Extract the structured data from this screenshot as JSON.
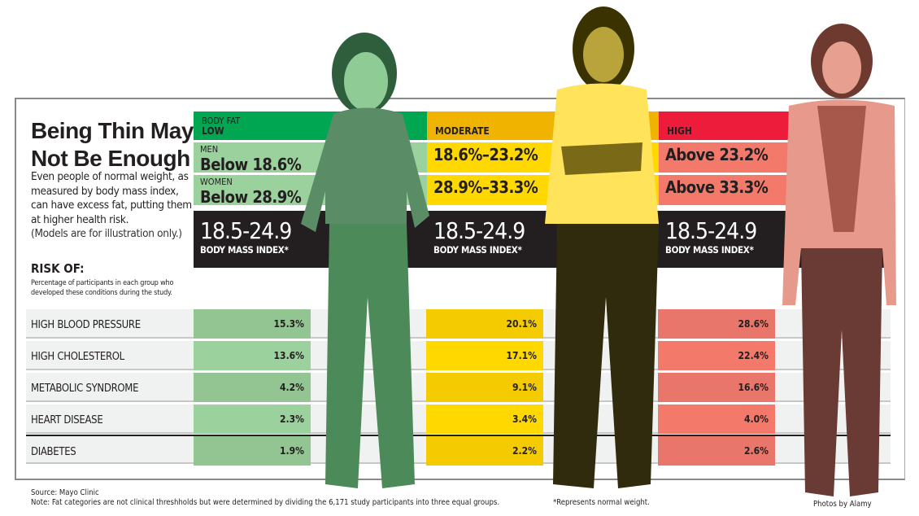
{
  "title": "Being Thin May Not Be Enough",
  "intro": "Even people of normal weight, as measured by body mass index, can have excess fat, putting them at higher health risk.",
  "intro_note": "(Models are for illustration only.)",
  "risk_heading": "RISK OF:",
  "risk_subtitle": "Percentage of participants in each group who developed these conditions during the study.",
  "body_fat_label": "BODY FAT",
  "men_label": "MEN",
  "women_label": "WOMEN",
  "colors": {
    "low_header": "#00a651",
    "low_cell": "#9ad19c",
    "low_cell_dark": "#93c592",
    "moderate_header": "#f0b400",
    "moderate_cell": "#ffd800",
    "moderate_cell_dark": "#f3cb00",
    "high_header": "#ed1c3a",
    "high_cell": "#f3796b",
    "high_cell_dark": "#e9766a",
    "bmi_band": "#231f20"
  },
  "chart_data": {
    "type": "table",
    "title": "Being Thin May Not Be Enough",
    "columns": [
      {
        "category": "LOW",
        "men": "Below 18.6%",
        "women": "Below 28.9%",
        "bmi": "18.5-24.9",
        "bmi_label": "BODY MASS INDEX*"
      },
      {
        "category": "MODERATE",
        "men": "18.6%–23.2%",
        "women": "28.9%–33.3%",
        "bmi": "18.5-24.9",
        "bmi_label": "BODY MASS INDEX*"
      },
      {
        "category": "HIGH",
        "men": "Above 23.2%",
        "women": "Above 33.3%",
        "bmi": "18.5-24.9",
        "bmi_label": "BODY MASS INDEX*"
      }
    ],
    "rows": [
      {
        "condition": "HIGH BLOOD PRESSURE",
        "values": [
          "15.3%",
          "20.1%",
          "28.6%"
        ]
      },
      {
        "condition": "HIGH CHOLESTEROL",
        "values": [
          "13.6%",
          "17.1%",
          "22.4%"
        ]
      },
      {
        "condition": "METABOLIC SYNDROME",
        "values": [
          "4.2%",
          "9.1%",
          "16.6%"
        ]
      },
      {
        "condition": "HEART DISEASE",
        "values": [
          "2.3%",
          "3.4%",
          "4.0%"
        ]
      },
      {
        "condition": "DIABETES",
        "values": [
          "1.9%",
          "2.2%",
          "2.6%"
        ]
      }
    ]
  },
  "source": "Source: Mayo Clinic",
  "note": "Note: Fat categories are not clinical threshholds but were determined by dividing the 6,171 study participants into three equal groups.",
  "footnote": "*Represents normal weight.",
  "photo_credit": "Photos by Alamy"
}
